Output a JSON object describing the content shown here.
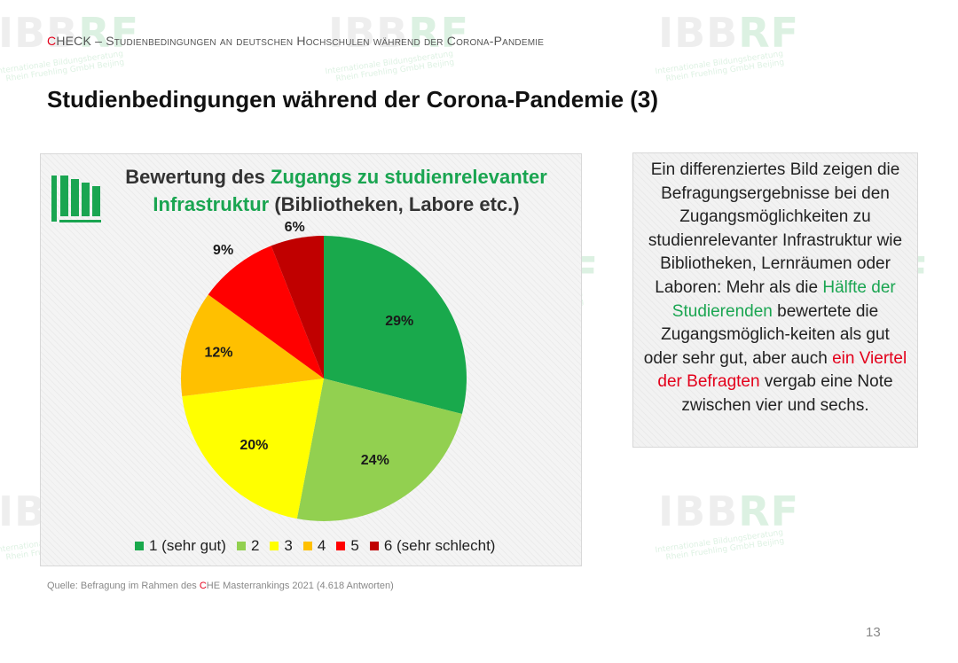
{
  "header": {
    "check_c": "C",
    "check_rest": "HECK",
    "dash": " – ",
    "text": "Studienbedingungen an deutschen Hochschulen während der Corona-Pandemie"
  },
  "title": "Studienbedingungen während der Corona-Pandemie (3)",
  "chart_title": {
    "part1": "Bewertung des ",
    "highlight": "Zugangs zu studienrelevanter Infrastruktur",
    "part2": " (Bibliotheken, Labore etc.)"
  },
  "chart_data": {
    "type": "pie",
    "title": "Bewertung des Zugangs zu studienrelevanter Infrastruktur (Bibliotheken, Labore etc.)",
    "categories": [
      "1 (sehr gut)",
      "2",
      "3",
      "4",
      "5",
      "6 (sehr schlecht)"
    ],
    "values": [
      29,
      24,
      20,
      12,
      9,
      6
    ],
    "labels": [
      "29%",
      "24%",
      "20%",
      "12%",
      "9%",
      "6%"
    ],
    "colors": [
      "#19a94c",
      "#92d050",
      "#ffff00",
      "#ffc000",
      "#ff0000",
      "#c00000"
    ],
    "legend_position": "bottom"
  },
  "source": {
    "prefix": "Quelle: Befragung im Rahmen des ",
    "c": "C",
    "suffix": "HE Masterrankings 2021 (4.618 Antworten)"
  },
  "textbox": {
    "part1": "Ein differenziertes Bild zeigen die Befragungsergebnisse bei den Zugangsmöglichkeiten zu studienrelevanter Infrastruktur wie Bibliotheken, Lernräumen oder Laboren: Mehr als die ",
    "green": "Hälfte der Studierenden",
    "part2": " bewertete die Zugangsmöglich-keiten als gut oder sehr gut, aber auch ",
    "red": "ein Viertel der Befragten",
    "part3": " vergab eine Note zwischen vier und sechs."
  },
  "watermark": {
    "logo_main": "IBB",
    "logo_accent": "RF",
    "line1": "Internationale Bildungsberatung",
    "line2": "Rhein Fruehling GmbH Beijing"
  },
  "page_number": "13",
  "icons": {
    "chart_icon": "library-books-icon"
  }
}
